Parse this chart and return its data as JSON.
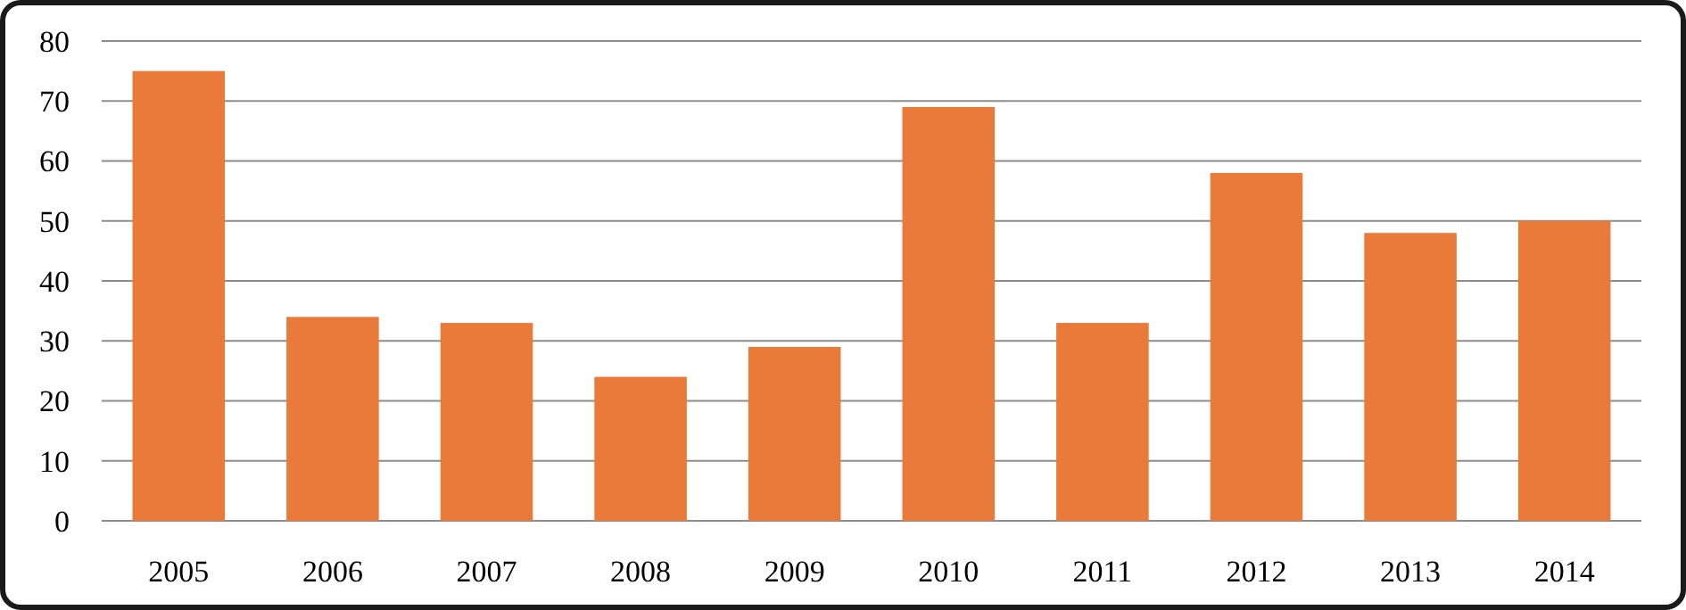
{
  "chart_data": {
    "type": "bar",
    "categories": [
      "2005",
      "2006",
      "2007",
      "2008",
      "2009",
      "2010",
      "2011",
      "2012",
      "2013",
      "2014"
    ],
    "values": [
      75,
      34,
      33,
      24,
      29,
      69,
      33,
      58,
      48,
      50
    ],
    "color": "#e97a3a",
    "ylim": [
      0,
      80
    ],
    "yticks": [
      0,
      10,
      20,
      30,
      40,
      50,
      60,
      70,
      80
    ],
    "grid": "y"
  }
}
